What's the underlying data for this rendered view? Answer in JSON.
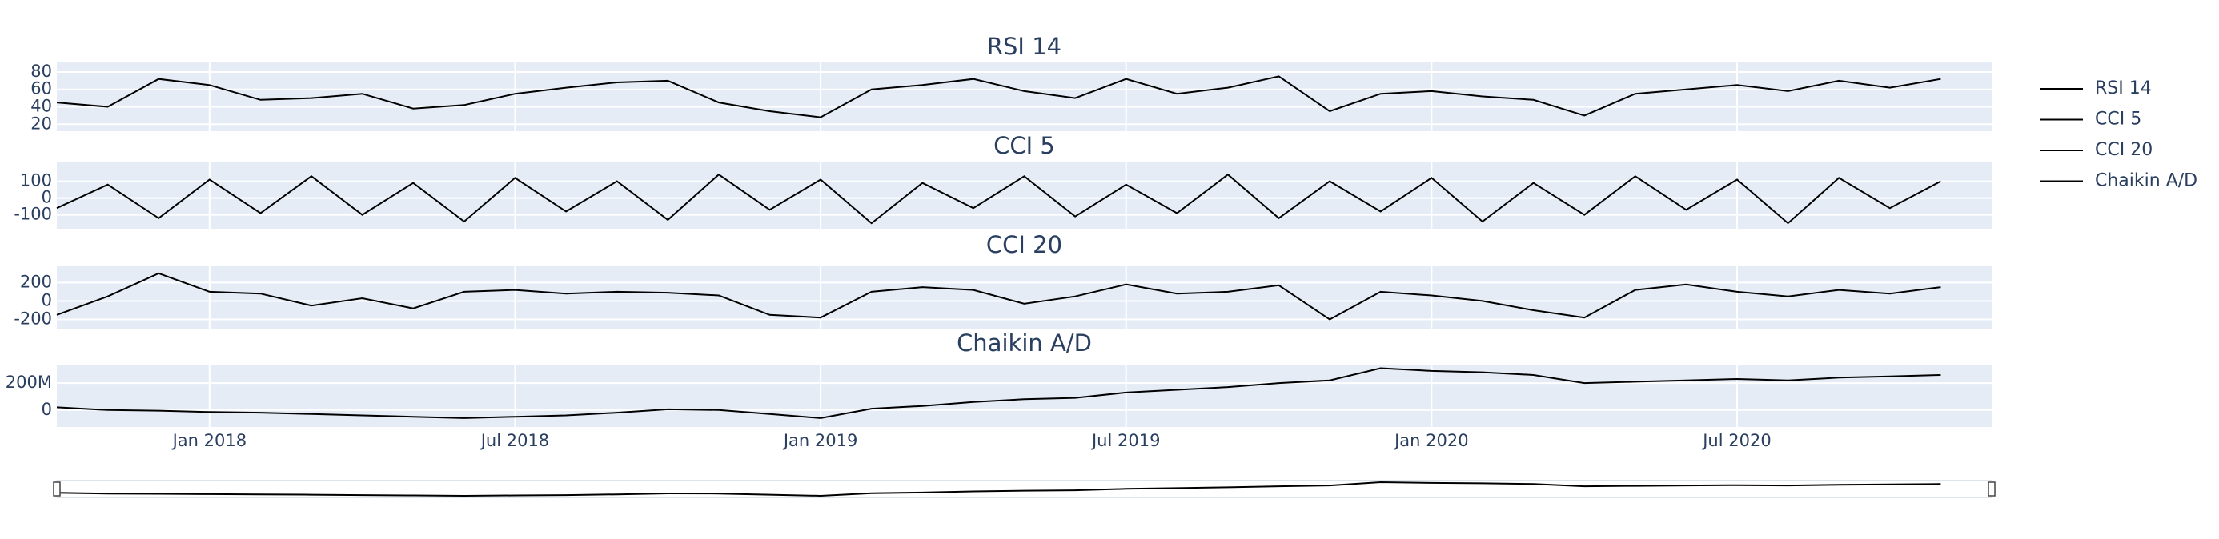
{
  "chart_data": {
    "type": "line",
    "x": [
      "2017-10",
      "2017-11",
      "2017-12",
      "2018-01",
      "2018-02",
      "2018-03",
      "2018-04",
      "2018-05",
      "2018-06",
      "2018-07",
      "2018-08",
      "2018-09",
      "2018-10",
      "2018-11",
      "2018-12",
      "2019-01",
      "2019-02",
      "2019-03",
      "2019-04",
      "2019-05",
      "2019-06",
      "2019-07",
      "2019-08",
      "2019-09",
      "2019-10",
      "2019-11",
      "2019-12",
      "2020-01",
      "2020-02",
      "2020-03",
      "2020-04",
      "2020-05",
      "2020-06",
      "2020-07",
      "2020-08",
      "2020-09",
      "2020-10",
      "2020-11"
    ],
    "xlim": [
      "2017-10",
      "2020-12"
    ],
    "xticks": [
      {
        "value": "2018-01",
        "label": "Jan 2018"
      },
      {
        "value": "2018-07",
        "label": "Jul 2018"
      },
      {
        "value": "2019-01",
        "label": "Jan 2019"
      },
      {
        "value": "2019-07",
        "label": "Jul 2019"
      },
      {
        "value": "2020-01",
        "label": "Jan 2020"
      },
      {
        "value": "2020-07",
        "label": "Jul 2020"
      }
    ],
    "grid": true,
    "series": [
      {
        "name": "RSI 14",
        "color": "#000000",
        "ylim": [
          12,
          91
        ],
        "yticks": [
          20,
          40,
          60,
          80
        ],
        "values": [
          45,
          40,
          72,
          65,
          48,
          50,
          55,
          38,
          42,
          55,
          62,
          68,
          70,
          45,
          35,
          28,
          60,
          65,
          72,
          58,
          50,
          72,
          55,
          62,
          75,
          35,
          55,
          58,
          52,
          48,
          30,
          55,
          60,
          65,
          58,
          70,
          62,
          72
        ]
      },
      {
        "name": "CCI 5",
        "color": "#000000",
        "ylim": [
          -183,
          217
        ],
        "yticks": [
          -100,
          0,
          100
        ],
        "values": [
          -60,
          80,
          -120,
          110,
          -90,
          130,
          -100,
          90,
          -140,
          120,
          -80,
          100,
          -130,
          140,
          -70,
          110,
          -150,
          90,
          -60,
          130,
          -110,
          80,
          -90,
          140,
          -120,
          100,
          -80,
          120,
          -140,
          90,
          -100,
          130,
          -70,
          110,
          -150,
          120,
          -60,
          100
        ]
      },
      {
        "name": "CCI 20",
        "color": "#000000",
        "ylim": [
          -308,
          385
        ],
        "yticks": [
          -200,
          0,
          200
        ],
        "values": [
          -150,
          50,
          300,
          100,
          80,
          -50,
          30,
          -80,
          100,
          120,
          80,
          100,
          90,
          60,
          -150,
          -180,
          100,
          150,
          120,
          -30,
          50,
          180,
          80,
          100,
          170,
          -200,
          100,
          60,
          0,
          -100,
          -180,
          120,
          180,
          100,
          50,
          120,
          80,
          150
        ]
      },
      {
        "name": "Chaikin A/D",
        "color": "#000000",
        "ylim": [
          -126000000,
          337000000
        ],
        "yticks": [
          0,
          {
            "value": 200000000,
            "label": "200M"
          }
        ],
        "values": [
          20000000,
          0,
          -5000000,
          -15000000,
          -20000000,
          -30000000,
          -40000000,
          -50000000,
          -60000000,
          -50000000,
          -40000000,
          -20000000,
          5000000,
          0,
          -30000000,
          -60000000,
          10000000,
          30000000,
          60000000,
          80000000,
          90000000,
          130000000,
          150000000,
          170000000,
          200000000,
          220000000,
          310000000,
          290000000,
          280000000,
          260000000,
          200000000,
          210000000,
          220000000,
          230000000,
          220000000,
          240000000,
          250000000,
          260000000
        ]
      }
    ]
  }
}
